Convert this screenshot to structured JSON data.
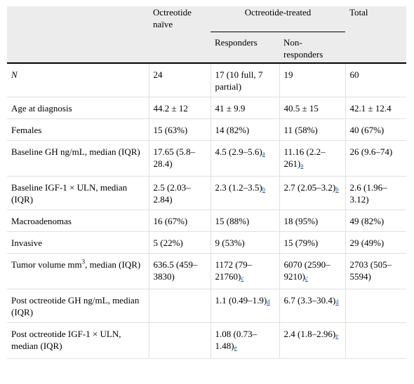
{
  "header": {
    "col1": "Octreotide naïve",
    "group": "Octreotide-treated",
    "col_total": "Total",
    "sub_responders": "Responders",
    "sub_nonresponders": "Non-responders"
  },
  "rows": [
    {
      "label": "N",
      "naive": "24",
      "resp": "17 (10 full, 7 partial)",
      "nonresp": "19",
      "total": "60"
    },
    {
      "label": "Age at diagnosis",
      "naive": "44.2 ± 12",
      "resp": "41 ± 9.9",
      "nonresp": "40.5 ± 15",
      "total": "42.1 ± 12.4"
    },
    {
      "label": "Females",
      "naive": "15 (63%)",
      "resp": "14 (82%)",
      "nonresp": "11 (58%)",
      "total": "40 (67%)"
    },
    {
      "label": "Baseline GH ng/mL, median (IQR)",
      "naive": "17.65 (5.8–28.4)",
      "resp": "4.5 (2.9–5.6)",
      "resp_fn": "a",
      "nonresp": "11.16 (2.2–261)",
      "nonresp_fn": "a",
      "total": "26 (9.6–74)"
    },
    {
      "label": "Baseline IGF-1 × ULN, median (IQR)",
      "naive": "2.5 (2.03–2.84)",
      "resp": "2.3 (1.2–3.5)",
      "resp_fn": "b",
      "nonresp": "2.7 (2.05–3.2)",
      "nonresp_fn": "b",
      "total": "2.6 (1.96–3.12)"
    },
    {
      "label": "Macroadenomas",
      "naive": "16 (67%)",
      "resp": "15 (88%)",
      "nonresp": "18 (95%)",
      "total": "49 (82%)"
    },
    {
      "label": "Invasive",
      "naive": "5 (22%)",
      "resp": "9 (53%)",
      "nonresp": "15 (79%)",
      "total": "29 (49%)"
    },
    {
      "label_pre": "Tumor volume mm",
      "label_sup": "3",
      "label_post": ", median (IQR)",
      "naive": "636.5 (459–3830)",
      "resp": "1172 (79–21760)",
      "resp_fn": "c",
      "nonresp": "6070 (2590–9210)",
      "nonresp_fn": "c",
      "total": "2703 (505–5594)"
    },
    {
      "label": "Post octreotide GH ng/mL, median (IQR)",
      "naive": "",
      "resp": "1.1 (0.49–1.9)",
      "resp_fn": "d",
      "nonresp": "6.7 (3.3–30.4)",
      "nonresp_fn": "d",
      "total": ""
    },
    {
      "label": "Post octreotide IGF-1 × ULN, median (IQR)",
      "naive": "",
      "resp": "1.08 (0.73–1.48)",
      "resp_fn": "e",
      "nonresp": "2.4 (1.8–2.96)",
      "nonresp_fn": "e",
      "total": ""
    }
  ]
}
